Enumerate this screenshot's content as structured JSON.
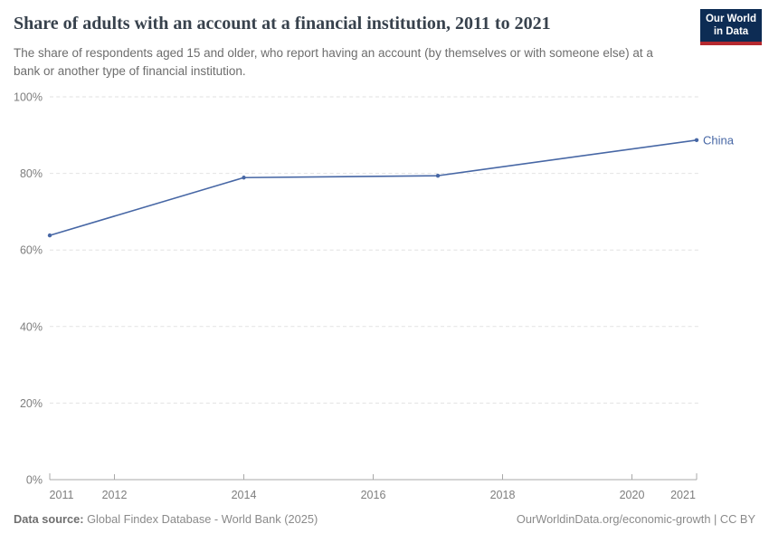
{
  "header": {
    "title": "Share of adults with an account at a financial institution, 2011 to 2021",
    "subtitle": "The share of respondents aged 15 and older, who report having an account (by themselves or with someone else) at a bank or another type of financial institution."
  },
  "logo": {
    "line1": "Our World",
    "line2": "in Data",
    "bg_color": "#0d2c54",
    "accent_color": "#b5292f"
  },
  "chart_data": {
    "type": "line",
    "title": "Share of adults with an account at a financial institution, 2011 to 2021",
    "series": [
      {
        "name": "China",
        "color": "#4767a5",
        "x": [
          2011,
          2014,
          2017,
          2021
        ],
        "values": [
          63.8,
          78.9,
          79.4,
          88.7
        ]
      }
    ],
    "x_ticks": [
      2011,
      2012,
      2014,
      2016,
      2018,
      2020,
      2021
    ],
    "y_ticks": [
      {
        "value": 0,
        "label": "0%"
      },
      {
        "value": 20,
        "label": "20%"
      },
      {
        "value": 40,
        "label": "40%"
      },
      {
        "value": 60,
        "label": "60%"
      },
      {
        "value": 80,
        "label": "80%"
      },
      {
        "value": 100,
        "label": "100%"
      }
    ],
    "xlim": [
      2011,
      2021
    ],
    "ylim": [
      0,
      100
    ],
    "xlabel": "",
    "ylabel": "",
    "grid": "horizontal-dashed",
    "legend": "series-end-label"
  },
  "colors": {
    "gridline": "#e2e2e2",
    "axis": "#a8a8a8",
    "tick_label": "#7e7e7e"
  },
  "footer": {
    "datasource_label": "Data source:",
    "datasource_text": " Global Findex Database - World Bank (2025)",
    "attribution": "OurWorldinData.org/economic-growth | CC BY"
  }
}
